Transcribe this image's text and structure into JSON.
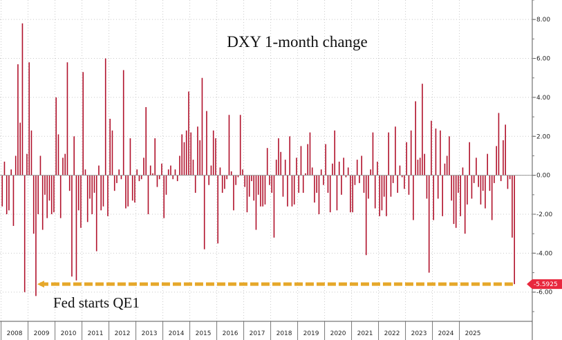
{
  "chart_data": {
    "type": "bar",
    "title": "DXY 1-month change",
    "xlabel": "",
    "ylabel": "",
    "ylim": [
      -7.5,
      9.0
    ],
    "y_ticks": [
      {
        "v": 8,
        "label": "8.00"
      },
      {
        "v": 6,
        "label": "6.00"
      },
      {
        "v": 4,
        "label": "4.00"
      },
      {
        "v": 2,
        "label": "2.00"
      },
      {
        "v": 0,
        "label": "0.00"
      },
      {
        "v": -2,
        "label": "-2.00"
      },
      {
        "v": -4,
        "label": "-4.00"
      },
      {
        "v": -6,
        "label": "-6.00"
      }
    ],
    "year_labels": [
      "2008",
      "2009",
      "2010",
      "2011",
      "2012",
      "2013",
      "2014",
      "2015",
      "2016",
      "2017",
      "2018",
      "2019",
      "2020",
      "2021",
      "2022",
      "2023",
      "2024",
      "2025"
    ],
    "grid": true,
    "bar_color": "#b0102a",
    "series": [
      {
        "values": [
          -1.6,
          0.7,
          -2.0,
          -1.8,
          0.3,
          -2.6,
          1.0,
          5.7,
          2.7,
          7.8,
          -6.0,
          1.1,
          5.8,
          2.3,
          -3.0,
          -6.2,
          -2.0,
          1.0,
          -2.8,
          -1.0,
          -2.2,
          -1.3,
          -2.0,
          -1.9,
          4.0,
          2.1,
          -2.2,
          0.9,
          1.1,
          5.8,
          -0.8,
          -5.2,
          2.0,
          -5.4,
          -1.8,
          -2.7,
          5.3,
          0.3,
          -2.4,
          -1.2,
          -2.0,
          -0.9,
          -3.9,
          0.5,
          -1.8,
          -1.6,
          6.0,
          -2.1,
          2.9,
          2.3,
          -0.8,
          -0.4,
          0.3,
          -0.2,
          5.4,
          -1.7,
          -1.6,
          1.9,
          -1.3,
          -1.4,
          0.3,
          -0.3,
          -0.2,
          0.9,
          3.5,
          -2.0,
          0.5,
          0.1,
          1.9,
          -0.6,
          -0.2,
          0.6,
          -2.2,
          -1.0,
          0.3,
          0.5,
          -0.2,
          0.3,
          -0.3,
          1.0,
          2.1,
          1.7,
          2.3,
          4.3,
          2.2,
          0.8,
          -0.9,
          2.5,
          1.8,
          5.0,
          -3.8,
          3.3,
          -0.5,
          0.5,
          2.3,
          1.9,
          -3.5,
          0.4,
          -0.9,
          -0.7,
          -0.2,
          3.1,
          0.2,
          -1.8,
          -0.5,
          -0.1,
          3.1,
          0.3,
          -0.6,
          -1.9,
          -1.1,
          -0.3,
          -1.3,
          -2.8,
          -1.0,
          -1.6,
          -1.6,
          -1.5,
          1.4,
          -0.5,
          -0.9,
          -3.2,
          0.8,
          1.9,
          1.2,
          -1.1,
          0.8,
          -1.6,
          2.0,
          -1.6,
          -1.5,
          0.9,
          -0.9,
          1.5,
          -0.9,
          0.1,
          1.6,
          2.2,
          0.4,
          -1.4,
          -0.9,
          -2.0,
          0.3,
          -0.5,
          1.6,
          -0.9,
          -1.9,
          0.6,
          2.3,
          -1.8,
          0.7,
          -1.0,
          0.9,
          -0.1,
          0.4,
          -1.9,
          -1.9,
          -0.5,
          0.8,
          -0.4,
          1.0,
          -0.9,
          -4.1,
          -1.2,
          0.3,
          2.2,
          -1.7,
          0.7,
          -2.1,
          -1.8,
          -1.1,
          -2.1,
          2.2,
          -1.1,
          -0.4,
          2.5,
          -0.9,
          0.5,
          -0.1,
          -0.7,
          1.7,
          -1.0,
          2.3,
          -2.3,
          3.8,
          0.8,
          0.9,
          4.7,
          1.1,
          -1.2,
          -5.0,
          2.8,
          -2.3,
          2.4,
          -1.2,
          2.3,
          -2.1,
          0.6,
          1.0,
          2.0,
          -1.3,
          -2.5,
          -2.7,
          -0.9,
          -2.1,
          0.4,
          -3.0,
          -1.5,
          1.7,
          -1.2,
          -0.4,
          0.9,
          -0.6,
          -1.5,
          -0.8,
          -1.7,
          1.1,
          -0.8,
          -2.3,
          -0.4,
          1.5,
          3.2,
          -0.3,
          1.8,
          2.6,
          -0.7,
          -0.2,
          -3.2,
          -5.59
        ]
      }
    ],
    "last_value_label": "-5.5925",
    "annotation": {
      "text": "Fed starts QE1",
      "from_index": 15,
      "to_index": 228,
      "value": -5.59,
      "color": "#e6a82a"
    }
  }
}
